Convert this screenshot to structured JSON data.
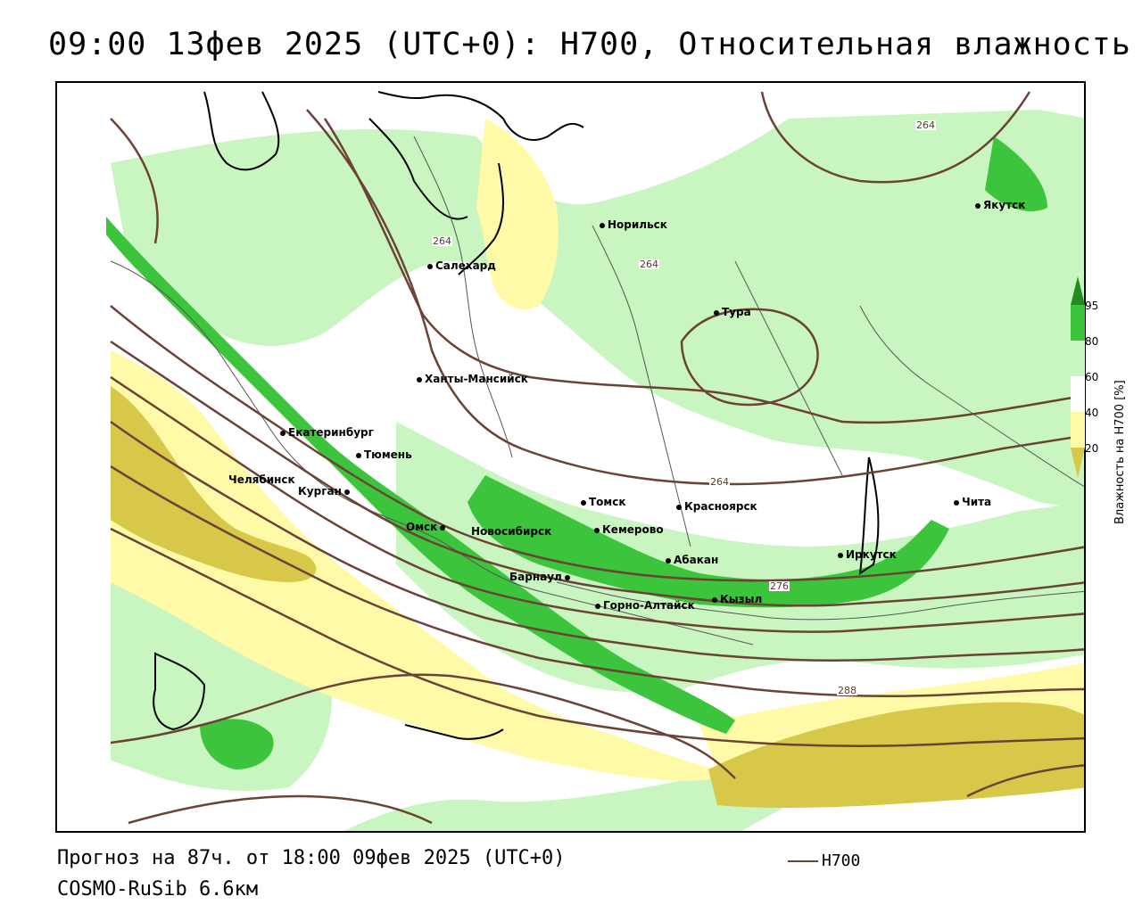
{
  "title": "09:00 13фев 2025 (UTC+0): H700, Относительная влажность",
  "footer": {
    "forecast": "Прогноз на 87ч. от 18:00 09фев 2025 (UTC+0)",
    "model": "COSMO-RuSib 6.6км",
    "contour_key": "H700"
  },
  "legend": {
    "label": "Влажность на H700 [%]",
    "ticks": [
      "95",
      "80",
      "60",
      "40",
      "20"
    ],
    "colors": {
      "c95": "#228b22",
      "c80": "#3cc43c",
      "c60": "#c8f5c0",
      "c40": "#fffaa8",
      "c20": "#d8c84a"
    }
  },
  "contour_labels": [
    "264",
    "264",
    "264",
    "264",
    "276",
    "288"
  ],
  "cities": [
    "Якутск",
    "Норильск",
    "Салехард",
    "Тура",
    "Ханты-Мансийск",
    "Екатеринбург",
    "Тюмень",
    "Челябинск",
    "Курган",
    "Томск",
    "Красноярск",
    "Чита",
    "Омск",
    "Новосибирск",
    "Кемерово",
    "Абакан",
    "Иркутск",
    "Барнаул",
    "Кызыл",
    "Горно-Алтайск"
  ],
  "colors": {
    "contour": "#6b4236",
    "coast": "#000000",
    "border": "#555555"
  }
}
